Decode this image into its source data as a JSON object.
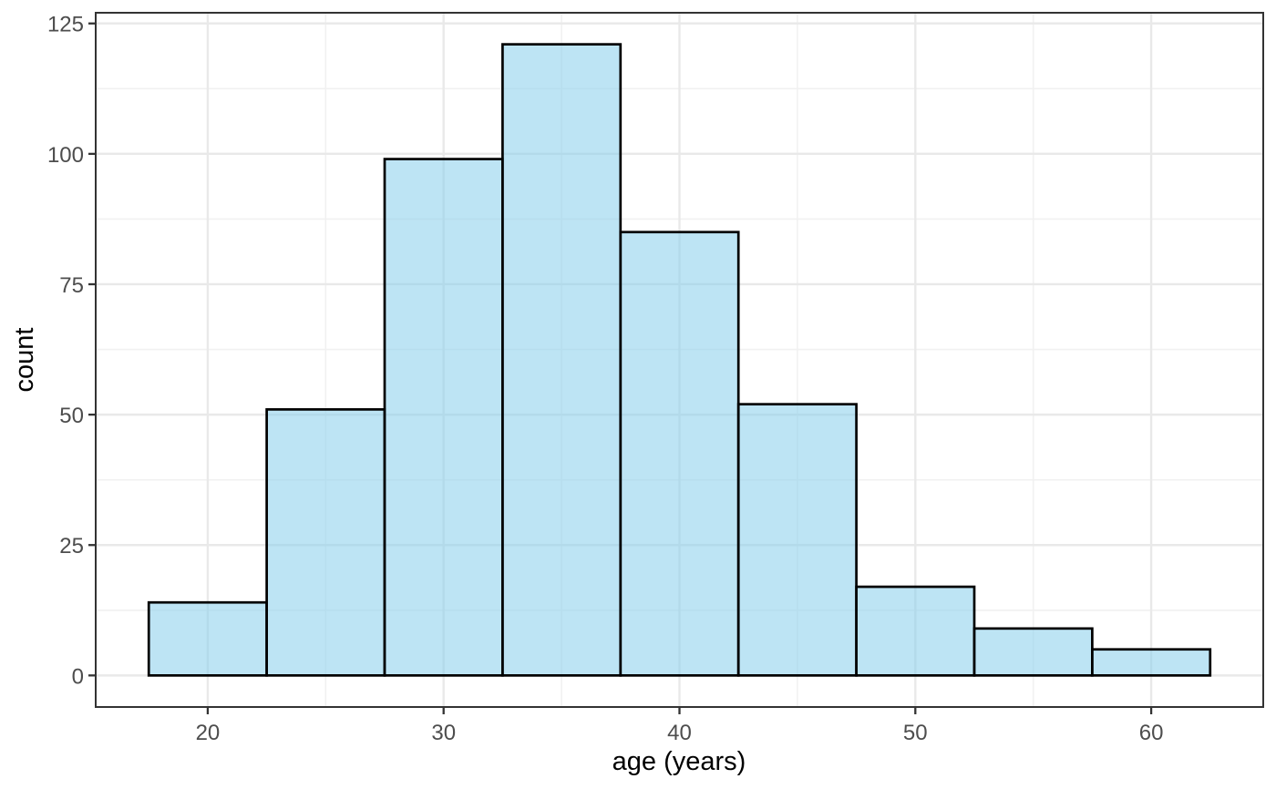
{
  "chart_data": {
    "type": "bar",
    "subtype": "histogram",
    "title": "",
    "xlabel": "age (years)",
    "ylabel": "count",
    "bin_edges": [
      17.5,
      22.5,
      27.5,
      32.5,
      37.5,
      42.5,
      47.5,
      52.5,
      57.5,
      62.5
    ],
    "counts": [
      14,
      51,
      99,
      121,
      85,
      52,
      17,
      9,
      5
    ],
    "x_ticks": [
      20,
      30,
      40,
      50,
      60
    ],
    "y_ticks": [
      0,
      25,
      50,
      75,
      100,
      125
    ],
    "x_minor_ticks": [
      25,
      35,
      45,
      55
    ],
    "y_minor_ticks": [
      12.5,
      37.5,
      62.5,
      87.5,
      112.5
    ],
    "xlim": [
      15.25,
      64.75
    ],
    "ylim": [
      -6.05,
      127.05
    ],
    "grid": true,
    "legend": "none",
    "colors": {
      "bar_fill": "#87CEEB",
      "bar_fill_opacity": 0.55,
      "bar_stroke": "#000000",
      "grid_major": "#E9E9E9",
      "grid_minor": "#F1F1F1",
      "panel_border": "#333333",
      "tick_mark": "#333333",
      "tick_label": "#4D4D4D",
      "axis_title": "#000000",
      "background": "#FFFFFF"
    }
  }
}
